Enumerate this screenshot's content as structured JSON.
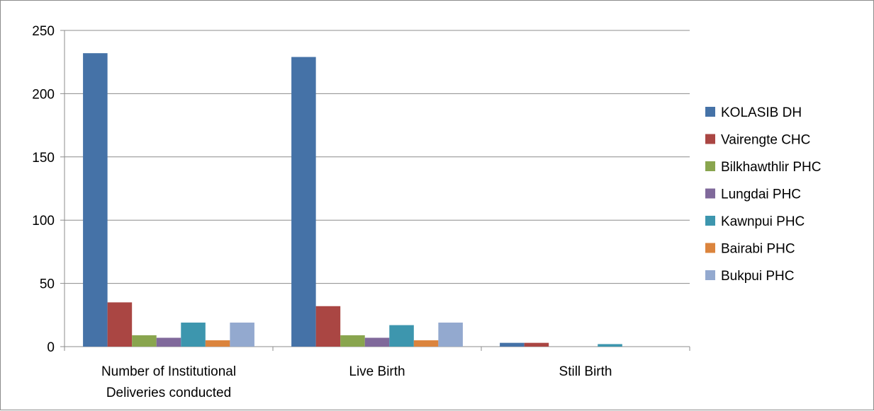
{
  "chart_data": {
    "type": "bar",
    "title": "",
    "xlabel": "",
    "ylabel": "",
    "ylim": [
      0,
      250
    ],
    "yticks": [
      0,
      50,
      100,
      150,
      200,
      250
    ],
    "grid": "horizontal",
    "legend_position": "right",
    "categories": [
      [
        "Number of Institutional",
        "Deliveries conducted"
      ],
      [
        "Live Birth"
      ],
      [
        "Still Birth"
      ]
    ],
    "series": [
      {
        "name": "KOLASIB DH",
        "color": "#4572A7",
        "values": [
          232,
          229,
          3
        ]
      },
      {
        "name": "Vairengte CHC",
        "color": "#AA4643",
        "values": [
          35,
          32,
          3
        ]
      },
      {
        "name": "Bilkhawthlir PHC",
        "color": "#89A54E",
        "values": [
          9,
          9,
          0
        ]
      },
      {
        "name": "Lungdai PHC",
        "color": "#80699B",
        "values": [
          7,
          7,
          0
        ]
      },
      {
        "name": "Kawnpui PHC",
        "color": "#3D96AE",
        "values": [
          19,
          17,
          2
        ]
      },
      {
        "name": "Bairabi PHC",
        "color": "#DB843D",
        "values": [
          5,
          5,
          0
        ]
      },
      {
        "name": "Bukpui PHC",
        "color": "#93A9CF",
        "values": [
          19,
          19,
          0
        ]
      }
    ]
  }
}
